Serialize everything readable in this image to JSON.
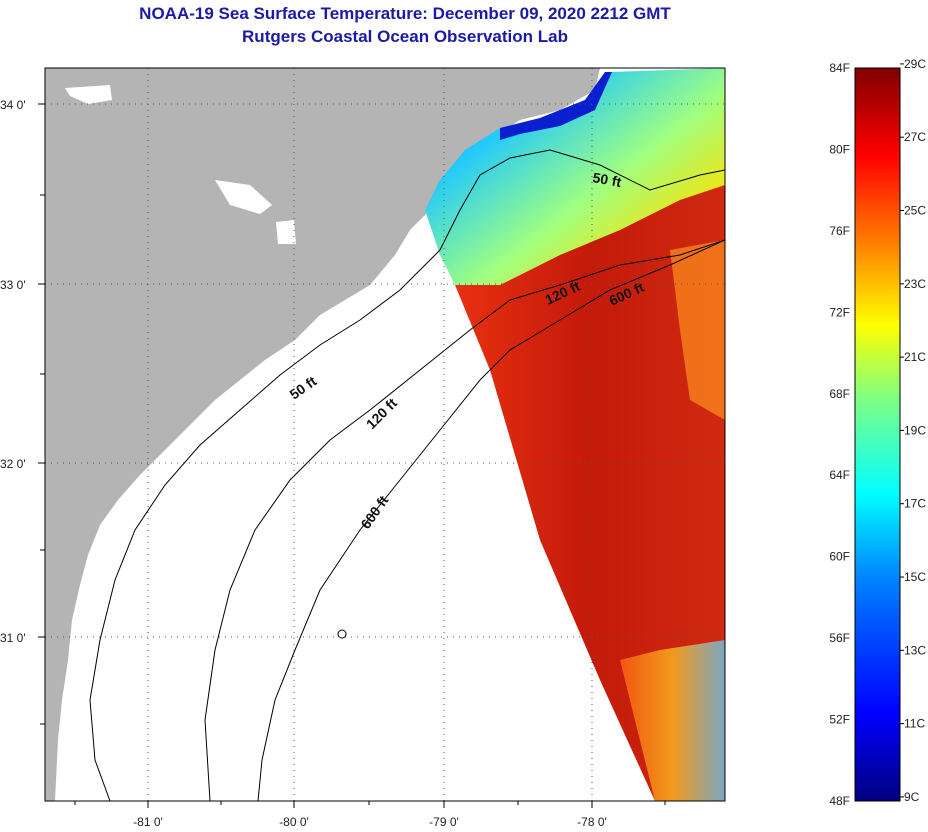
{
  "title": {
    "line1": "NOAA-19 Sea Surface Temperature:  December 09, 2020 2212 GMT",
    "line2": "Rutgers Coastal Ocean Observation Lab"
  },
  "latitude_ticks": [
    "34 0'",
    "33 0'",
    "32 0'",
    "31 0'"
  ],
  "longitude_ticks": [
    "-81 0'",
    "-80 0'",
    "-79 0'",
    "-78 0'"
  ],
  "contour_labels": {
    "ft50_inshore": "50 ft",
    "ft120_inshore": "120 ft",
    "ft600_inshore": "600 ft",
    "ft50_offshore": "50 ft",
    "ft120_offshore": "120 ft",
    "ft600_offshore": "600 ft"
  },
  "colorbar": {
    "fahrenheit": [
      "84F",
      "80F",
      "76F",
      "72F",
      "68F",
      "64F",
      "60F",
      "56F",
      "52F",
      "48F"
    ],
    "celsius": [
      "29C",
      "27C",
      "25C",
      "23C",
      "21C",
      "19C",
      "17C",
      "15C",
      "13C",
      "11C",
      "9C"
    ]
  },
  "colors": {
    "land": "#b4b4b4",
    "title": "#1a1aa6",
    "warm": "#c81e0a",
    "cool": "#1ec8ff"
  }
}
